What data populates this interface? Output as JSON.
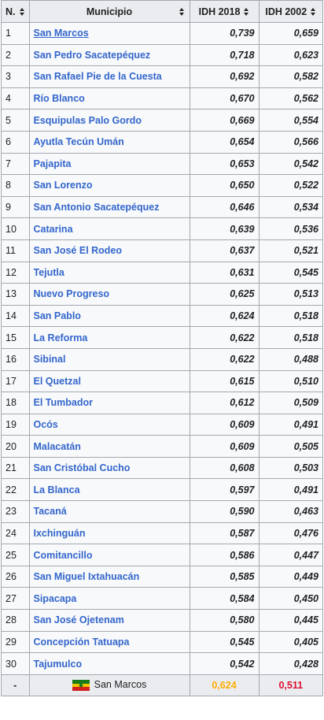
{
  "headers": {
    "num": "N.",
    "municipio": "Municipio",
    "idh2018": "IDH 2018",
    "idh2002": "IDH 2002"
  },
  "rows": [
    {
      "n": "1",
      "name": "San Marcos",
      "i18": "0,739",
      "i02": "0,659"
    },
    {
      "n": "2",
      "name": "San Pedro Sacatepéquez",
      "i18": "0,718",
      "i02": "0,623"
    },
    {
      "n": "3",
      "name": "San Rafael Pie de la Cuesta",
      "i18": "0,692",
      "i02": "0,582"
    },
    {
      "n": "4",
      "name": "Río Blanco",
      "i18": "0,670",
      "i02": "0,562"
    },
    {
      "n": "5",
      "name": "Esquipulas Palo Gordo",
      "i18": "0,669",
      "i02": "0,554"
    },
    {
      "n": "6",
      "name": "Ayutla Tecún Umán",
      "i18": "0,654",
      "i02": "0,566"
    },
    {
      "n": "7",
      "name": "Pajapita",
      "i18": "0,653",
      "i02": "0,542"
    },
    {
      "n": "8",
      "name": "San Lorenzo",
      "i18": "0,650",
      "i02": "0,522"
    },
    {
      "n": "9",
      "name": "San Antonio Sacatepéquez",
      "i18": "0,646",
      "i02": "0,534"
    },
    {
      "n": "10",
      "name": "Catarina",
      "i18": "0,639",
      "i02": "0,536"
    },
    {
      "n": "11",
      "name": "San José El Rodeo",
      "i18": "0,637",
      "i02": "0,521"
    },
    {
      "n": "12",
      "name": "Tejutla",
      "i18": "0,631",
      "i02": "0,545"
    },
    {
      "n": "13",
      "name": "Nuevo Progreso",
      "i18": "0,625",
      "i02": "0,513"
    },
    {
      "n": "14",
      "name": "San Pablo",
      "i18": "0,624",
      "i02": "0,518"
    },
    {
      "n": "15",
      "name": "La Reforma",
      "i18": "0,622",
      "i02": "0,518"
    },
    {
      "n": "16",
      "name": "Sibinal",
      "i18": "0,622",
      "i02": "0,488"
    },
    {
      "n": "17",
      "name": "El Quetzal",
      "i18": "0,615",
      "i02": "0,510"
    },
    {
      "n": "18",
      "name": "El Tumbador",
      "i18": "0,612",
      "i02": "0,509"
    },
    {
      "n": "19",
      "name": "Ocós",
      "i18": "0,609",
      "i02": "0,491"
    },
    {
      "n": "20",
      "name": "Malacatán",
      "i18": "0,609",
      "i02": "0,505"
    },
    {
      "n": "21",
      "name": "San Cristóbal Cucho",
      "i18": "0,608",
      "i02": "0,503"
    },
    {
      "n": "22",
      "name": "La Blanca",
      "i18": "0,597",
      "i02": "0,491"
    },
    {
      "n": "23",
      "name": "Tacaná",
      "i18": "0,590",
      "i02": "0,463"
    },
    {
      "n": "24",
      "name": "Ixchinguán",
      "i18": "0,587",
      "i02": "0,476"
    },
    {
      "n": "25",
      "name": "Comitancillo",
      "i18": "0,586",
      "i02": "0,447"
    },
    {
      "n": "26",
      "name": "San Miguel Ixtahuacán",
      "i18": "0,585",
      "i02": "0,449"
    },
    {
      "n": "27",
      "name": "Sipacapa",
      "i18": "0,584",
      "i02": "0,450"
    },
    {
      "n": "28",
      "name": "San José Ojetenam",
      "i18": "0,580",
      "i02": "0,445"
    },
    {
      "n": "29",
      "name": "Concepción Tatuapa",
      "i18": "0,545",
      "i02": "0,405"
    },
    {
      "n": "30",
      "name": "Tajumulco",
      "i18": "0,542",
      "i02": "0,428"
    }
  ],
  "summary": {
    "n": "-",
    "name": "San Marcos",
    "i18": "0,624",
    "i02": "0,511",
    "flag_icon": "san-marcos-flag-icon",
    "color_2018": "#ffad00",
    "color_2002": "#dd1133"
  },
  "colors": {
    "link": "#3366cc",
    "header_bg": "#eaecf0",
    "cell_bg": "#f8f9fa",
    "border": "#a2a9b1"
  }
}
